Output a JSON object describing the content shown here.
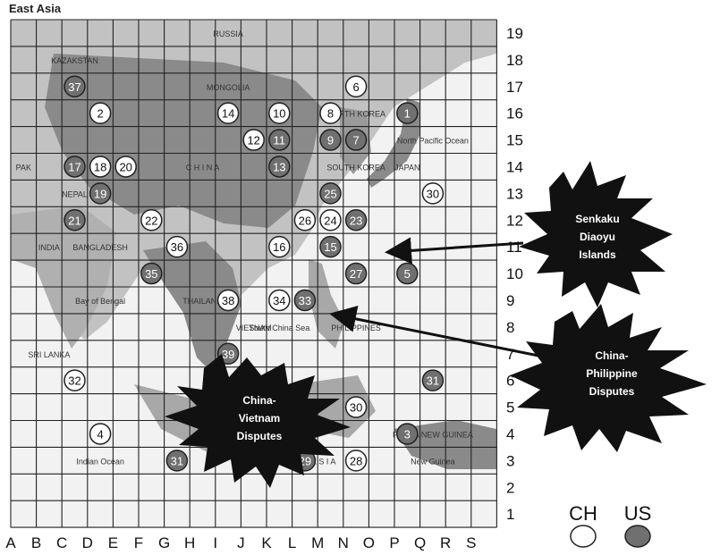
{
  "title": "East Asia",
  "columns": [
    "A",
    "B",
    "C",
    "D",
    "E",
    "F",
    "G",
    "H",
    "I",
    "J",
    "K",
    "L",
    "M",
    "N",
    "O",
    "P",
    "Q",
    "R",
    "S"
  ],
  "rows": [
    "1",
    "2",
    "3",
    "4",
    "5",
    "6",
    "7",
    "8",
    "9",
    "10",
    "11",
    "12",
    "13",
    "14",
    "15",
    "16",
    "17",
    "18",
    "19"
  ],
  "colors": {
    "ch": "#ffffff",
    "us": "#707070",
    "land": "#c2c2c2",
    "land_dark": "#8a8a8a",
    "sea": "#f2f2f2"
  },
  "map_labels": [
    {
      "id": "russia",
      "text": "RUSSIA",
      "col": "I",
      "row": "19"
    },
    {
      "id": "kazakstan",
      "text": "KAZAKSTAN",
      "col": "C",
      "row": "18"
    },
    {
      "id": "mongolia",
      "text": "MONGOLIA",
      "col": "I",
      "row": "17"
    },
    {
      "id": "china",
      "text": "C H I N A",
      "col": "H",
      "row": "14"
    },
    {
      "id": "north-korea",
      "text": "NORTH KOREA",
      "col": "N",
      "row": "16"
    },
    {
      "id": "south-korea",
      "text": "SOUTH KOREA",
      "col": "N",
      "row": "14"
    },
    {
      "id": "japan",
      "text": "JAPAN",
      "col": "P",
      "row": "14"
    },
    {
      "id": "north-pacific",
      "text": "North Pacific Ocean",
      "col": "Q",
      "row": "15"
    },
    {
      "id": "india",
      "text": "INDIA",
      "col": "B",
      "row": "11"
    },
    {
      "id": "nepal",
      "text": "NEPAL",
      "col": "C",
      "row": "13"
    },
    {
      "id": "bangladesh",
      "text": "BANGLADESH",
      "col": "D",
      "row": "11"
    },
    {
      "id": "bay-of-bengal",
      "text": "Bay of Bengal",
      "col": "D",
      "row": "9"
    },
    {
      "id": "thailand",
      "text": "THAILAND",
      "col": "H",
      "row": "9"
    },
    {
      "id": "vietnam",
      "text": "VIETNAM",
      "col": "J",
      "row": "8"
    },
    {
      "id": "south-china-sea",
      "text": "South China Sea",
      "col": "K",
      "row": "8"
    },
    {
      "id": "philippines",
      "text": "PHILIPPINES",
      "col": "N",
      "row": "8"
    },
    {
      "id": "sri-lanka",
      "text": "SRI LANKA",
      "col": "B",
      "row": "7"
    },
    {
      "id": "indian-ocean",
      "text": "Indian Ocean",
      "col": "D",
      "row": "3"
    },
    {
      "id": "indonesia",
      "text": "I N D O N E S I A",
      "col": "L",
      "row": "3"
    },
    {
      "id": "new-guinea",
      "text": "New Guinea",
      "col": "Q",
      "row": "3"
    },
    {
      "id": "papua",
      "text": "PAPUA NEW GUINEA",
      "col": "Q",
      "row": "4"
    },
    {
      "id": "pak",
      "text": "PAK",
      "col": "A",
      "row": "14"
    }
  ],
  "markers": [
    {
      "n": "37",
      "type": "us",
      "col": "C",
      "row": "17"
    },
    {
      "n": "2",
      "type": "ch",
      "col": "D",
      "row": "16"
    },
    {
      "n": "6",
      "type": "ch",
      "col": "N",
      "row": "17"
    },
    {
      "n": "1",
      "type": "us",
      "col": "P",
      "row": "16"
    },
    {
      "n": "14",
      "type": "ch",
      "col": "I",
      "row": "16"
    },
    {
      "n": "10",
      "type": "ch",
      "col": "K",
      "row": "16"
    },
    {
      "n": "8",
      "type": "ch",
      "col": "M",
      "row": "16"
    },
    {
      "n": "12",
      "type": "ch",
      "col": "J",
      "row": "15"
    },
    {
      "n": "11",
      "type": "us",
      "col": "K",
      "row": "15"
    },
    {
      "n": "9",
      "type": "us",
      "col": "M",
      "row": "15"
    },
    {
      "n": "7",
      "type": "us",
      "col": "N",
      "row": "15"
    },
    {
      "n": "17",
      "type": "us",
      "col": "C",
      "row": "14"
    },
    {
      "n": "18",
      "type": "ch",
      "col": "D",
      "row": "14"
    },
    {
      "n": "20",
      "type": "ch",
      "col": "E",
      "row": "14"
    },
    {
      "n": "13",
      "type": "us",
      "col": "K",
      "row": "14"
    },
    {
      "n": "19",
      "type": "us",
      "col": "D",
      "row": "13"
    },
    {
      "n": "25",
      "type": "us",
      "col": "M",
      "row": "13"
    },
    {
      "n": "30",
      "type": "ch",
      "col": "Q",
      "row": "13"
    },
    {
      "n": "21",
      "type": "us",
      "col": "C",
      "row": "12"
    },
    {
      "n": "22",
      "type": "ch",
      "col": "F",
      "row": "12"
    },
    {
      "n": "26",
      "type": "ch",
      "col": "L",
      "row": "12"
    },
    {
      "n": "24",
      "type": "ch",
      "col": "M",
      "row": "12"
    },
    {
      "n": "23",
      "type": "us",
      "col": "N",
      "row": "12"
    },
    {
      "n": "36",
      "type": "ch",
      "col": "G",
      "row": "11"
    },
    {
      "n": "16",
      "type": "ch",
      "col": "K",
      "row": "11"
    },
    {
      "n": "15",
      "type": "us",
      "col": "M",
      "row": "11"
    },
    {
      "n": "35",
      "type": "us",
      "col": "F",
      "row": "10"
    },
    {
      "n": "27",
      "type": "us",
      "col": "N",
      "row": "10"
    },
    {
      "n": "5",
      "type": "us",
      "col": "P",
      "row": "10"
    },
    {
      "n": "38",
      "type": "ch",
      "col": "I",
      "row": "9"
    },
    {
      "n": "34",
      "type": "ch",
      "col": "K",
      "row": "9"
    },
    {
      "n": "33",
      "type": "us",
      "col": "L",
      "row": "9"
    },
    {
      "n": "39",
      "type": "us",
      "col": "I",
      "row": "7"
    },
    {
      "n": "32",
      "type": "ch",
      "col": "C",
      "row": "6"
    },
    {
      "n": "31",
      "type": "us",
      "col": "Q",
      "row": "6"
    },
    {
      "n": "30",
      "type": "ch",
      "col": "N",
      "row": "5"
    },
    {
      "n": "4",
      "type": "ch",
      "col": "D",
      "row": "4"
    },
    {
      "n": "3",
      "type": "us",
      "col": "P",
      "row": "4"
    },
    {
      "n": "31",
      "type": "us",
      "col": "G",
      "row": "3"
    },
    {
      "n": "29",
      "type": "us",
      "col": "L",
      "row": "3"
    },
    {
      "n": "28",
      "type": "ch",
      "col": "N",
      "row": "3"
    }
  ],
  "callouts": [
    {
      "id": "senkaku",
      "lines": [
        "Senkaku",
        "Diaoyu",
        "Islands"
      ]
    },
    {
      "id": "china-philippine",
      "lines": [
        "China-",
        "Philippine",
        "Disputes"
      ]
    },
    {
      "id": "china-vietnam",
      "lines": [
        "China-",
        "Vietnam",
        "Disputes"
      ]
    }
  ],
  "legend": {
    "ch_label": "CH",
    "us_label": "US"
  }
}
